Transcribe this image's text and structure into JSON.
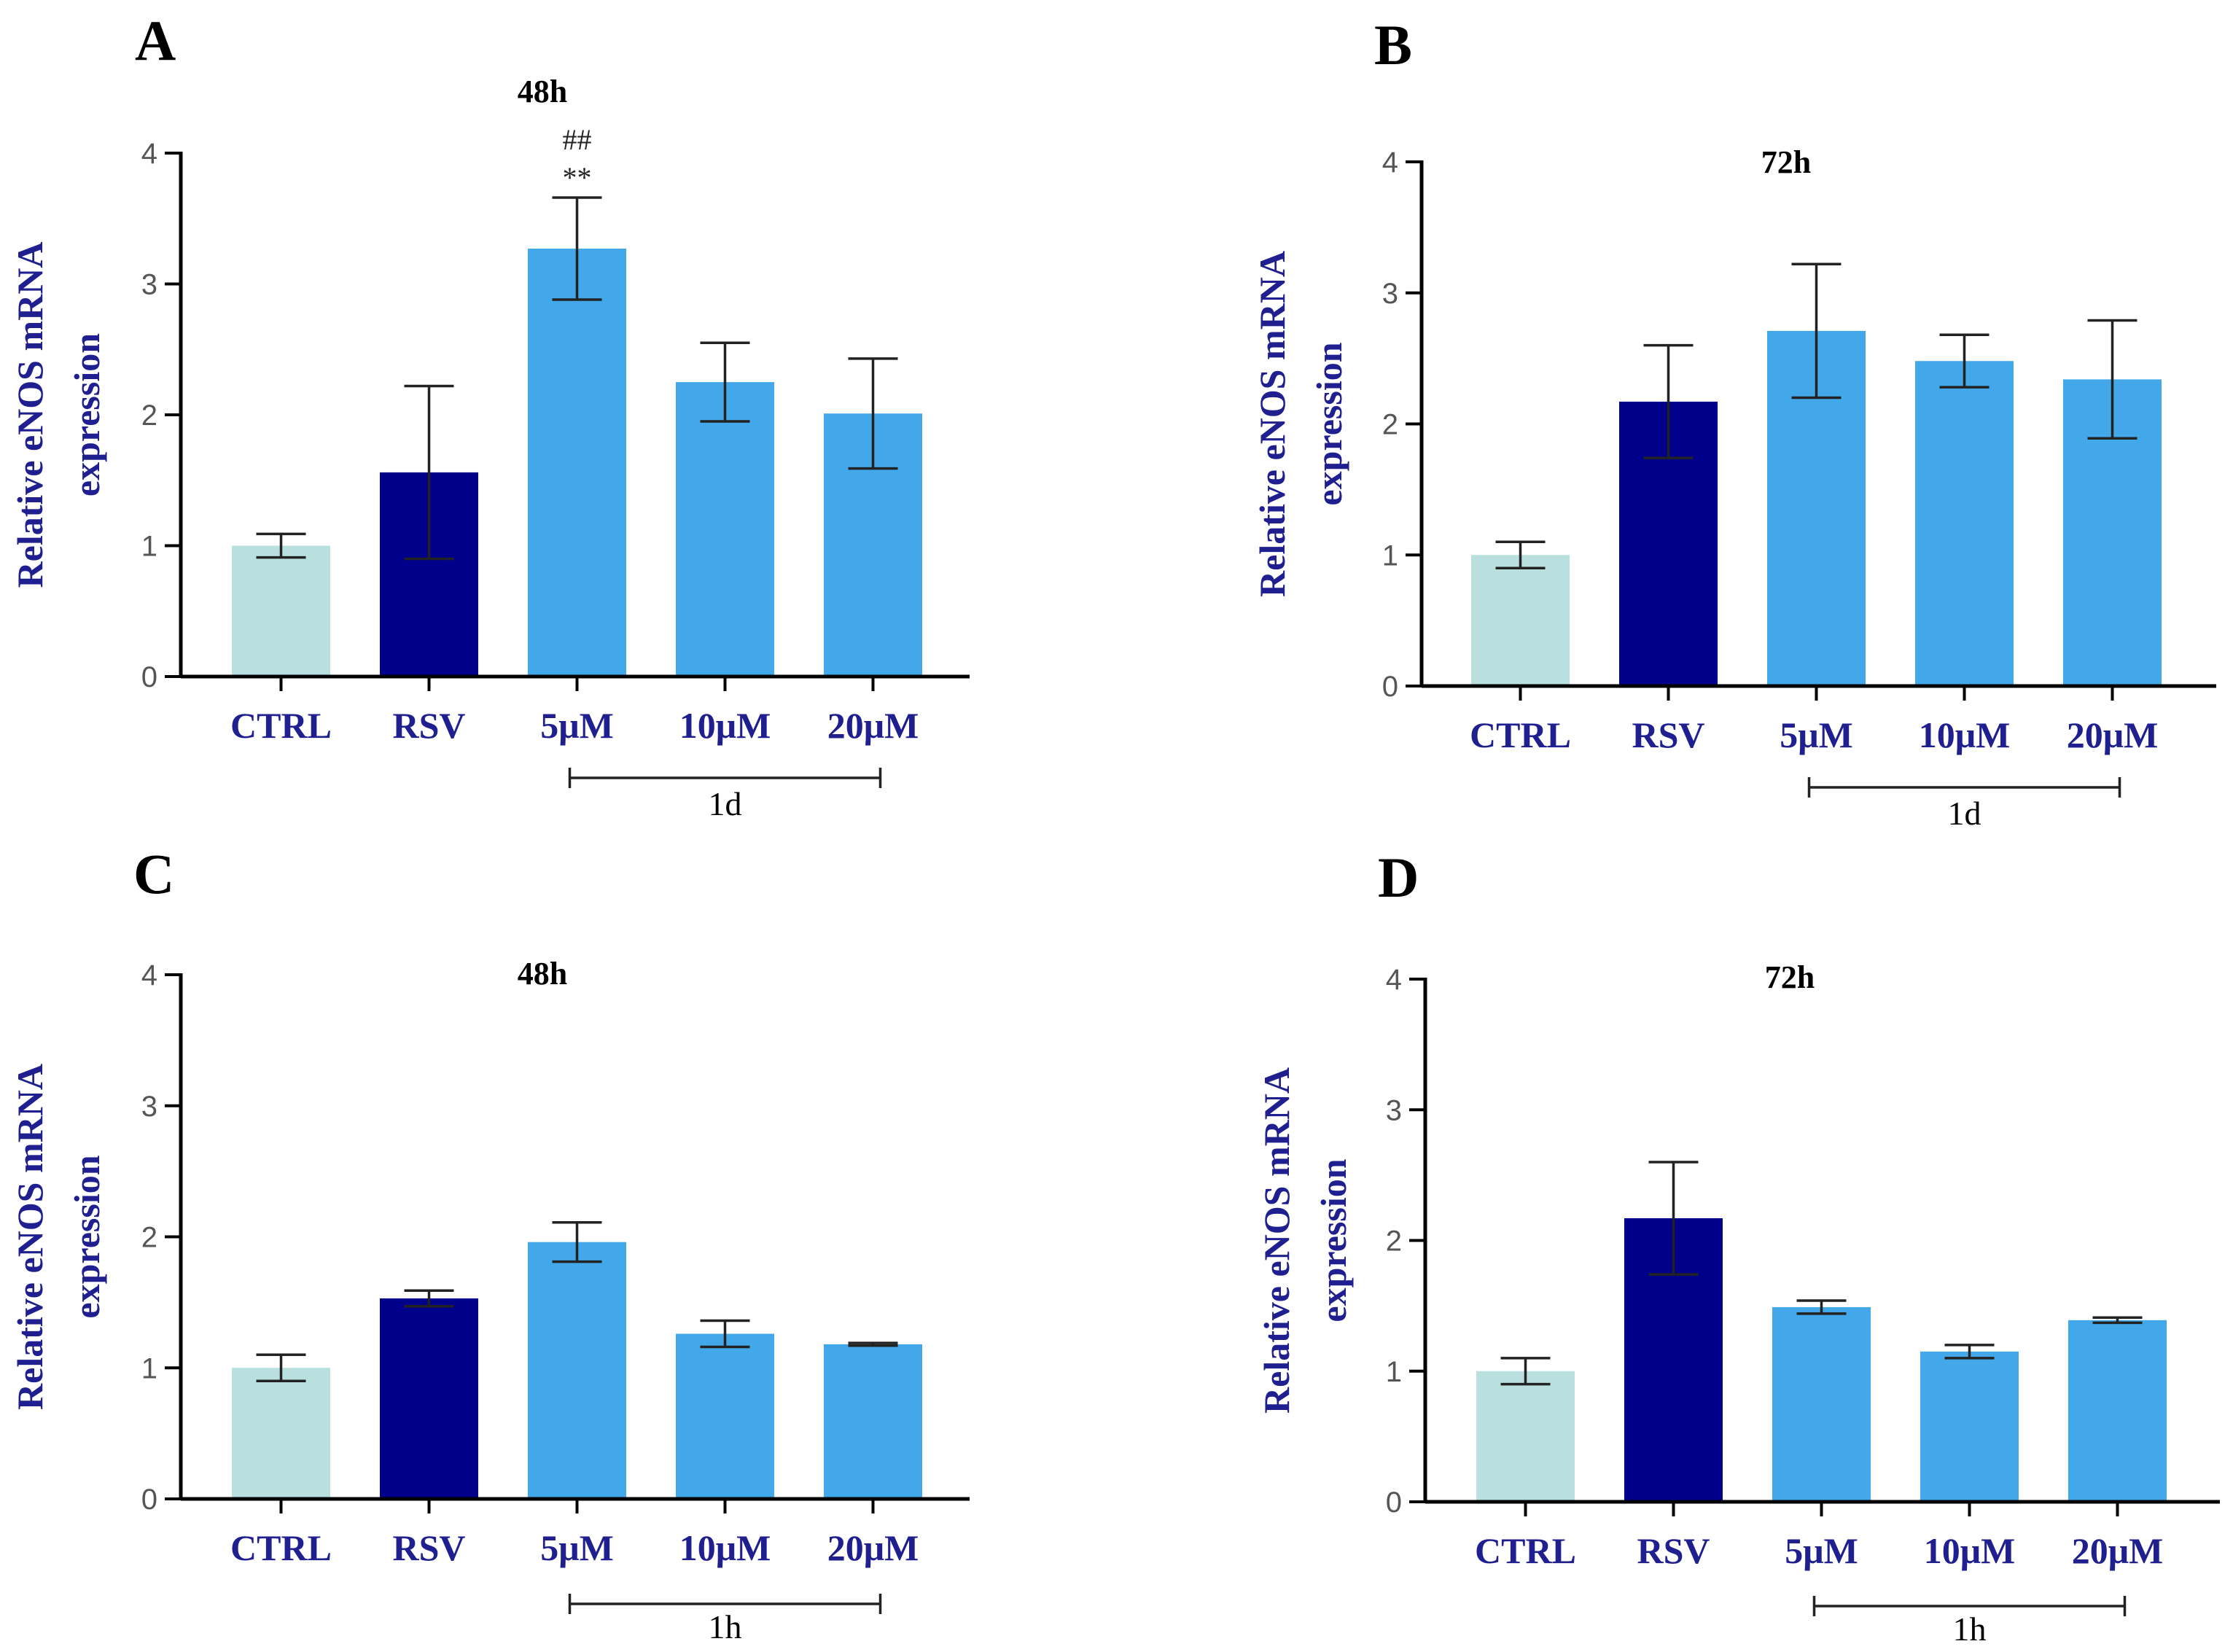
{
  "colors": {
    "ctrl": "#b9dfdf",
    "rsv": "#00008b",
    "treatment": "#43a8ea",
    "axis": "#000000",
    "label": "#1f1f8f"
  },
  "chart_data": [
    {
      "type": "bar",
      "panel": "A",
      "title": "48h",
      "ylabel": "Relative eNOS mRNA expression",
      "ylabel_lines": [
        "Relative eNOS mRNA",
        "expression"
      ],
      "ylim": [
        0,
        4
      ],
      "yticks": [
        "0",
        "1",
        "2",
        "3",
        "4"
      ],
      "categories": [
        "CTRL",
        "RSV",
        "5μM",
        "10μM",
        "20μM"
      ],
      "values": [
        1.0,
        1.56,
        3.27,
        2.25,
        2.01
      ],
      "errors": [
        0.09,
        0.66,
        0.39,
        0.3,
        0.42
      ],
      "annotations": [
        {
          "category": "5μM",
          "lines": [
            "##",
            "**"
          ]
        }
      ],
      "group": {
        "label": "1d",
        "from": "5μM",
        "to": "20μM"
      }
    },
    {
      "type": "bar",
      "panel": "B",
      "title": "72h",
      "ylabel": "Relative eNOS mRNA expression",
      "ylabel_lines": [
        "Relative eNOS mRNA",
        "expression"
      ],
      "ylim": [
        0,
        4
      ],
      "yticks": [
        "0",
        "1",
        "2",
        "3",
        "4"
      ],
      "categories": [
        "CTRL",
        "RSV",
        "5μM",
        "10μM",
        "20μM"
      ],
      "values": [
        1.0,
        2.17,
        2.71,
        2.48,
        2.34
      ],
      "errors": [
        0.1,
        0.43,
        0.51,
        0.2,
        0.45
      ],
      "annotations": [],
      "group": {
        "label": "1d",
        "from": "5μM",
        "to": "20μM"
      }
    },
    {
      "type": "bar",
      "panel": "C",
      "title": "48h",
      "ylabel": "Relative eNOS mRNA expression",
      "ylabel_lines": [
        "Relative eNOS mRNA",
        "expression"
      ],
      "ylim": [
        0,
        4
      ],
      "yticks": [
        "0",
        "1",
        "2",
        "3",
        "4"
      ],
      "categories": [
        "CTRL",
        "RSV",
        "5μM",
        "10μM",
        "20μM"
      ],
      "values": [
        1.0,
        1.53,
        1.96,
        1.26,
        1.18
      ],
      "errors": [
        0.1,
        0.06,
        0.15,
        0.1,
        0.01
      ],
      "annotations": [],
      "group": {
        "label": "1h",
        "from": "5μM",
        "to": "20μM"
      }
    },
    {
      "type": "bar",
      "panel": "D",
      "title": "72h",
      "ylabel": "Relative eNOS mRNA expression",
      "ylabel_lines": [
        "Relative eNOS mRNA",
        "expression"
      ],
      "ylim": [
        0,
        4
      ],
      "yticks": [
        "0",
        "1",
        "2",
        "3",
        "4"
      ],
      "categories": [
        "CTRL",
        "RSV",
        "5μM",
        "10μM",
        "20μM"
      ],
      "values": [
        1.0,
        2.17,
        1.49,
        1.15,
        1.39
      ],
      "errors": [
        0.1,
        0.43,
        0.05,
        0.05,
        0.02
      ],
      "annotations": [],
      "group": {
        "label": "1h",
        "from": "5μM",
        "to": "20μM"
      }
    }
  ]
}
